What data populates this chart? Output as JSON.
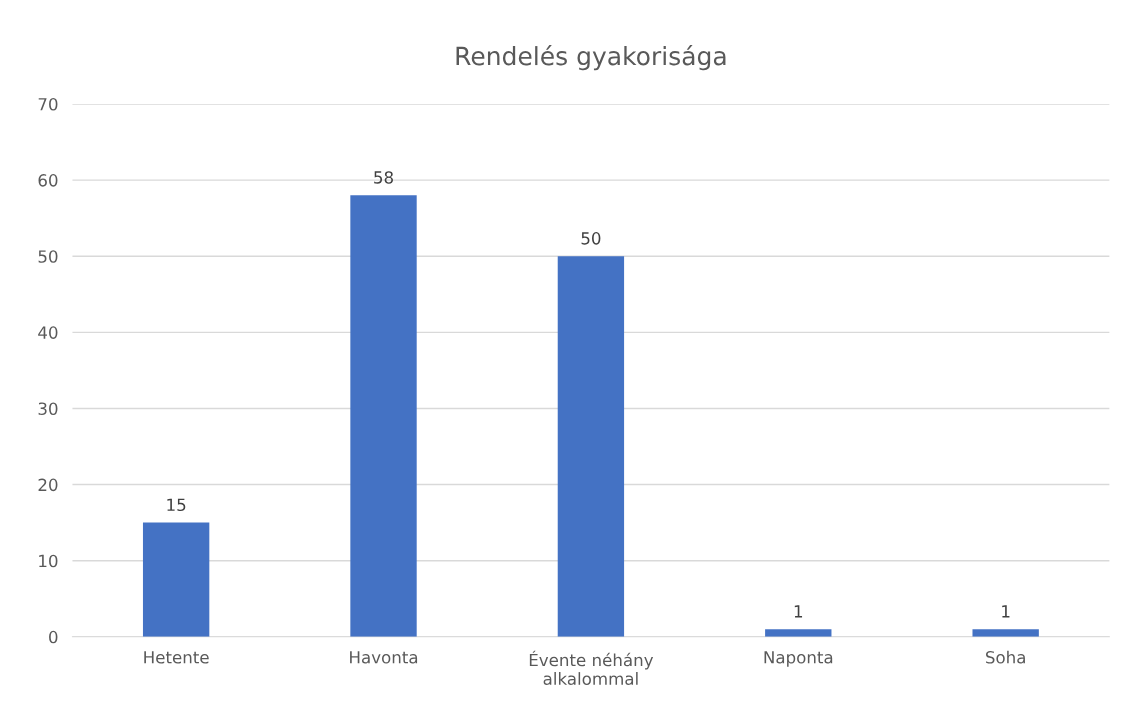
{
  "chart_data": {
    "type": "bar",
    "title": "Rendelés gyakorisága",
    "categories": [
      "Hetente",
      "Havonta",
      "Évente néhány alkalommal",
      "Naponta",
      "Soha"
    ],
    "values": [
      15,
      58,
      50,
      1,
      1
    ],
    "color": "#4472c4",
    "ylim": [
      0,
      70
    ],
    "yticks": [
      0,
      10,
      20,
      30,
      40,
      50,
      60,
      70
    ],
    "grid": "y",
    "data_labels": true
  }
}
